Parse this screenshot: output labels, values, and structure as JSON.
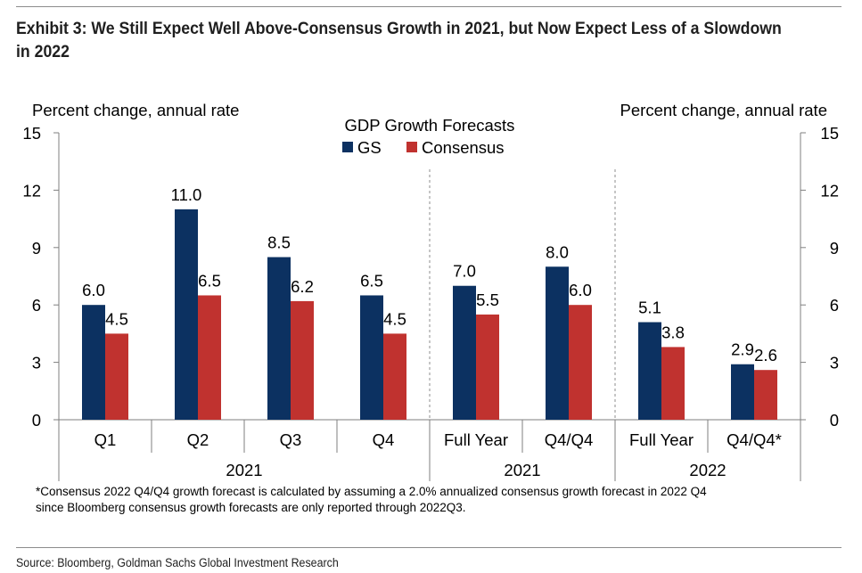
{
  "title": "Exhibit 3: We Still Expect Well Above-Consensus Growth in 2021, but Now Expect Less of a Slowdown in 2022",
  "footnote_line1": "*Consensus 2022 Q4/Q4 growth forecast is calculated by assuming a 2.0% annualized consensus growth forecast in 2022 Q4",
  "footnote_line2": "since Bloomberg consensus growth forecasts are only reported through 2022Q3.",
  "source": "Source: Bloomberg, Goldman Sachs Global Investment Research",
  "colors": {
    "gs": "#0c3161",
    "consensus": "#c0322f",
    "axis": "#7f7f7f"
  },
  "chart_data": {
    "type": "bar",
    "title": "GDP Growth Forecasts",
    "ylabel_left": "Percent change, annual rate",
    "ylabel_right": "Percent change, annual rate",
    "ylim": [
      0,
      15
    ],
    "yticks": [
      "0",
      "3",
      "6",
      "9",
      "12",
      "15"
    ],
    "categories": [
      "Q1",
      "Q2",
      "Q3",
      "Q4",
      "Full Year",
      "Q4/Q4",
      "Full Year",
      "Q4/Q4*"
    ],
    "groups": [
      {
        "label": "2021",
        "categories": [
          0,
          1,
          2,
          3
        ]
      },
      {
        "label": "2021",
        "categories": [
          4,
          5
        ]
      },
      {
        "label": "2022",
        "categories": [
          6,
          7
        ]
      }
    ],
    "series": [
      {
        "name": "GS",
        "values": [
          6.0,
          11.0,
          8.5,
          6.5,
          7.0,
          8.0,
          5.1,
          2.9
        ],
        "labels": [
          "6.0",
          "11.0",
          "8.5",
          "6.5",
          "7.0",
          "8.0",
          "5.1",
          "2.9"
        ]
      },
      {
        "name": "Consensus",
        "values": [
          4.5,
          6.5,
          6.2,
          4.5,
          5.5,
          6.0,
          3.8,
          2.6
        ],
        "labels": [
          "4.5",
          "6.5",
          "6.2",
          "4.5",
          "5.5",
          "6.0",
          "3.8",
          "2.6"
        ]
      }
    ]
  }
}
